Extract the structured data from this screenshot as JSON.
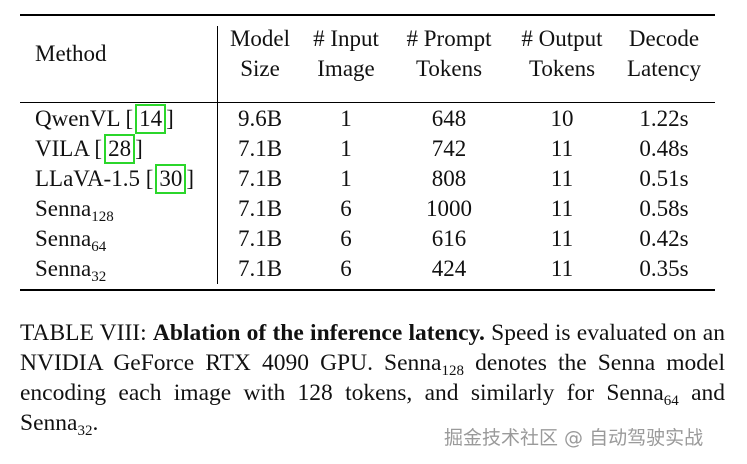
{
  "table": {
    "headers": {
      "method": "Method",
      "model_size": [
        "Model",
        "Size"
      ],
      "input_image": [
        "# Input",
        "Image"
      ],
      "prompt_tokens": [
        "# Prompt",
        "Tokens"
      ],
      "output_tokens": [
        "# Output",
        "Tokens"
      ],
      "decode_latency": [
        "Decode",
        "Latency"
      ]
    },
    "rows": [
      {
        "method": "QwenVL [",
        "ref": "14",
        "method_tail": "]",
        "sub": "",
        "size": "9.6B",
        "images": "1",
        "prompt": "648",
        "output": "10",
        "latency": "1.22s"
      },
      {
        "method": "VILA [",
        "ref": "28",
        "method_tail": "]",
        "sub": "",
        "size": "7.1B",
        "images": "1",
        "prompt": "742",
        "output": "11",
        "latency": "0.48s"
      },
      {
        "method": "LLaVA-1.5 [",
        "ref": "30",
        "method_tail": "]",
        "sub": "",
        "size": "7.1B",
        "images": "1",
        "prompt": "808",
        "output": "11",
        "latency": "0.51s"
      },
      {
        "method": "Senna",
        "ref": "",
        "method_tail": "",
        "sub": "128",
        "size": "7.1B",
        "images": "6",
        "prompt": "1000",
        "output": "11",
        "latency": "0.58s"
      },
      {
        "method": "Senna",
        "ref": "",
        "method_tail": "",
        "sub": "64",
        "size": "7.1B",
        "images": "6",
        "prompt": "616",
        "output": "11",
        "latency": "0.42s"
      },
      {
        "method": "Senna",
        "ref": "",
        "method_tail": "",
        "sub": "32",
        "size": "7.1B",
        "images": "6",
        "prompt": "424",
        "output": "11",
        "latency": "0.35s"
      }
    ]
  },
  "caption": {
    "label": "TABLE VIII: ",
    "bold": "Ablation of the inference latency.",
    "text1": " Speed is evaluated on an NVIDIA GeForce RTX 4090 GPU. Senna",
    "sub1": "128",
    "text2": " denotes the Senna model encoding each image with 128 tokens, and similarly for Senna",
    "sub2": "64",
    "text3": " and Senna",
    "sub3": "32",
    "text4": "."
  },
  "watermark": "掘金技术社区 @ 自动驾驶实战",
  "colors": {
    "ref_box": "#2bd62b"
  }
}
